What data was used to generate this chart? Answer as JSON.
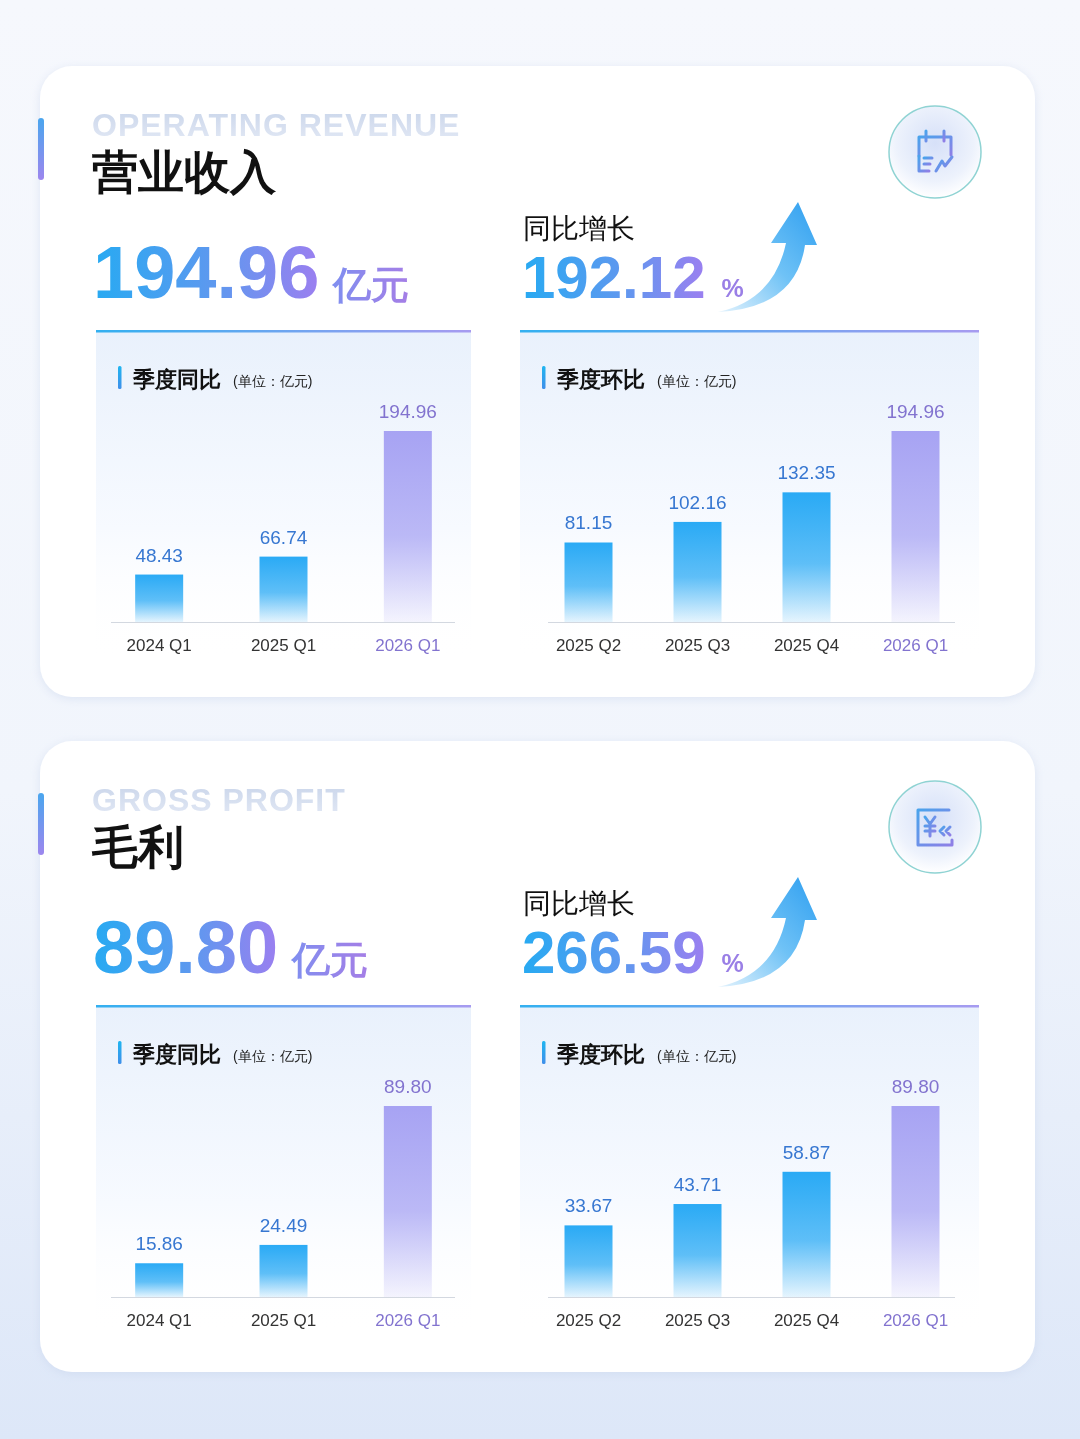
{
  "chart_data": [
    {
      "type": "other",
      "title": "营业收入",
      "subtitle": "OPERATING REVENUE",
      "annotations": [
        "194.96",
        "亿元",
        "同比增长",
        "192.12",
        "%"
      ]
    },
    {
      "type": "bar",
      "title": "季度同比",
      "subtitle": "(单位：亿元)",
      "categories": [
        "2024 Q1",
        "2025 Q1",
        "2026 Q1"
      ],
      "values": [
        48.43,
        66.74,
        194.96
      ],
      "value_labels": [
        "48.43",
        "66.74",
        "194.96"
      ],
      "colors": [
        "#2aaaf5",
        "#2aaaf5",
        "#a7a3f3"
      ]
    },
    {
      "type": "bar",
      "title": "季度环比",
      "subtitle": "(单位：亿元)",
      "categories": [
        "2025 Q2",
        "2025 Q3",
        "2025 Q4",
        "2026 Q1"
      ],
      "values": [
        81.15,
        102.16,
        132.35,
        194.96
      ],
      "value_labels": [
        "81.15",
        "102.16",
        "132.35",
        "194.96"
      ],
      "colors": [
        "#2aaaf5",
        "#2aaaf5",
        "#2aaaf5",
        "#a7a3f3"
      ]
    },
    {
      "type": "other",
      "title": "毛利",
      "subtitle": "GROSS PROFIT",
      "annotations": [
        "89.80",
        "亿元",
        "同比增长",
        "266.59",
        "%"
      ]
    },
    {
      "type": "bar",
      "title": "季度同比",
      "subtitle": "(单位：亿元)",
      "categories": [
        "2024 Q1",
        "2025 Q1",
        "2026 Q1"
      ],
      "values": [
        15.86,
        24.49,
        89.8
      ],
      "value_labels": [
        "15.86",
        "24.49",
        "89.80"
      ],
      "colors": [
        "#2aaaf5",
        "#2aaaf5",
        "#a7a3f3"
      ]
    },
    {
      "type": "bar",
      "title": "季度环比",
      "subtitle": "(单位：亿元)",
      "categories": [
        "2025 Q2",
        "2025 Q3",
        "2025 Q4",
        "2026 Q1"
      ],
      "values": [
        33.67,
        43.71,
        58.87,
        89.8
      ],
      "value_labels": [
        "33.67",
        "43.71",
        "58.87",
        "89.80"
      ],
      "colors": [
        "#2aaaf5",
        "#2aaaf5",
        "#2aaaf5",
        "#a7a3f3"
      ]
    }
  ]
}
